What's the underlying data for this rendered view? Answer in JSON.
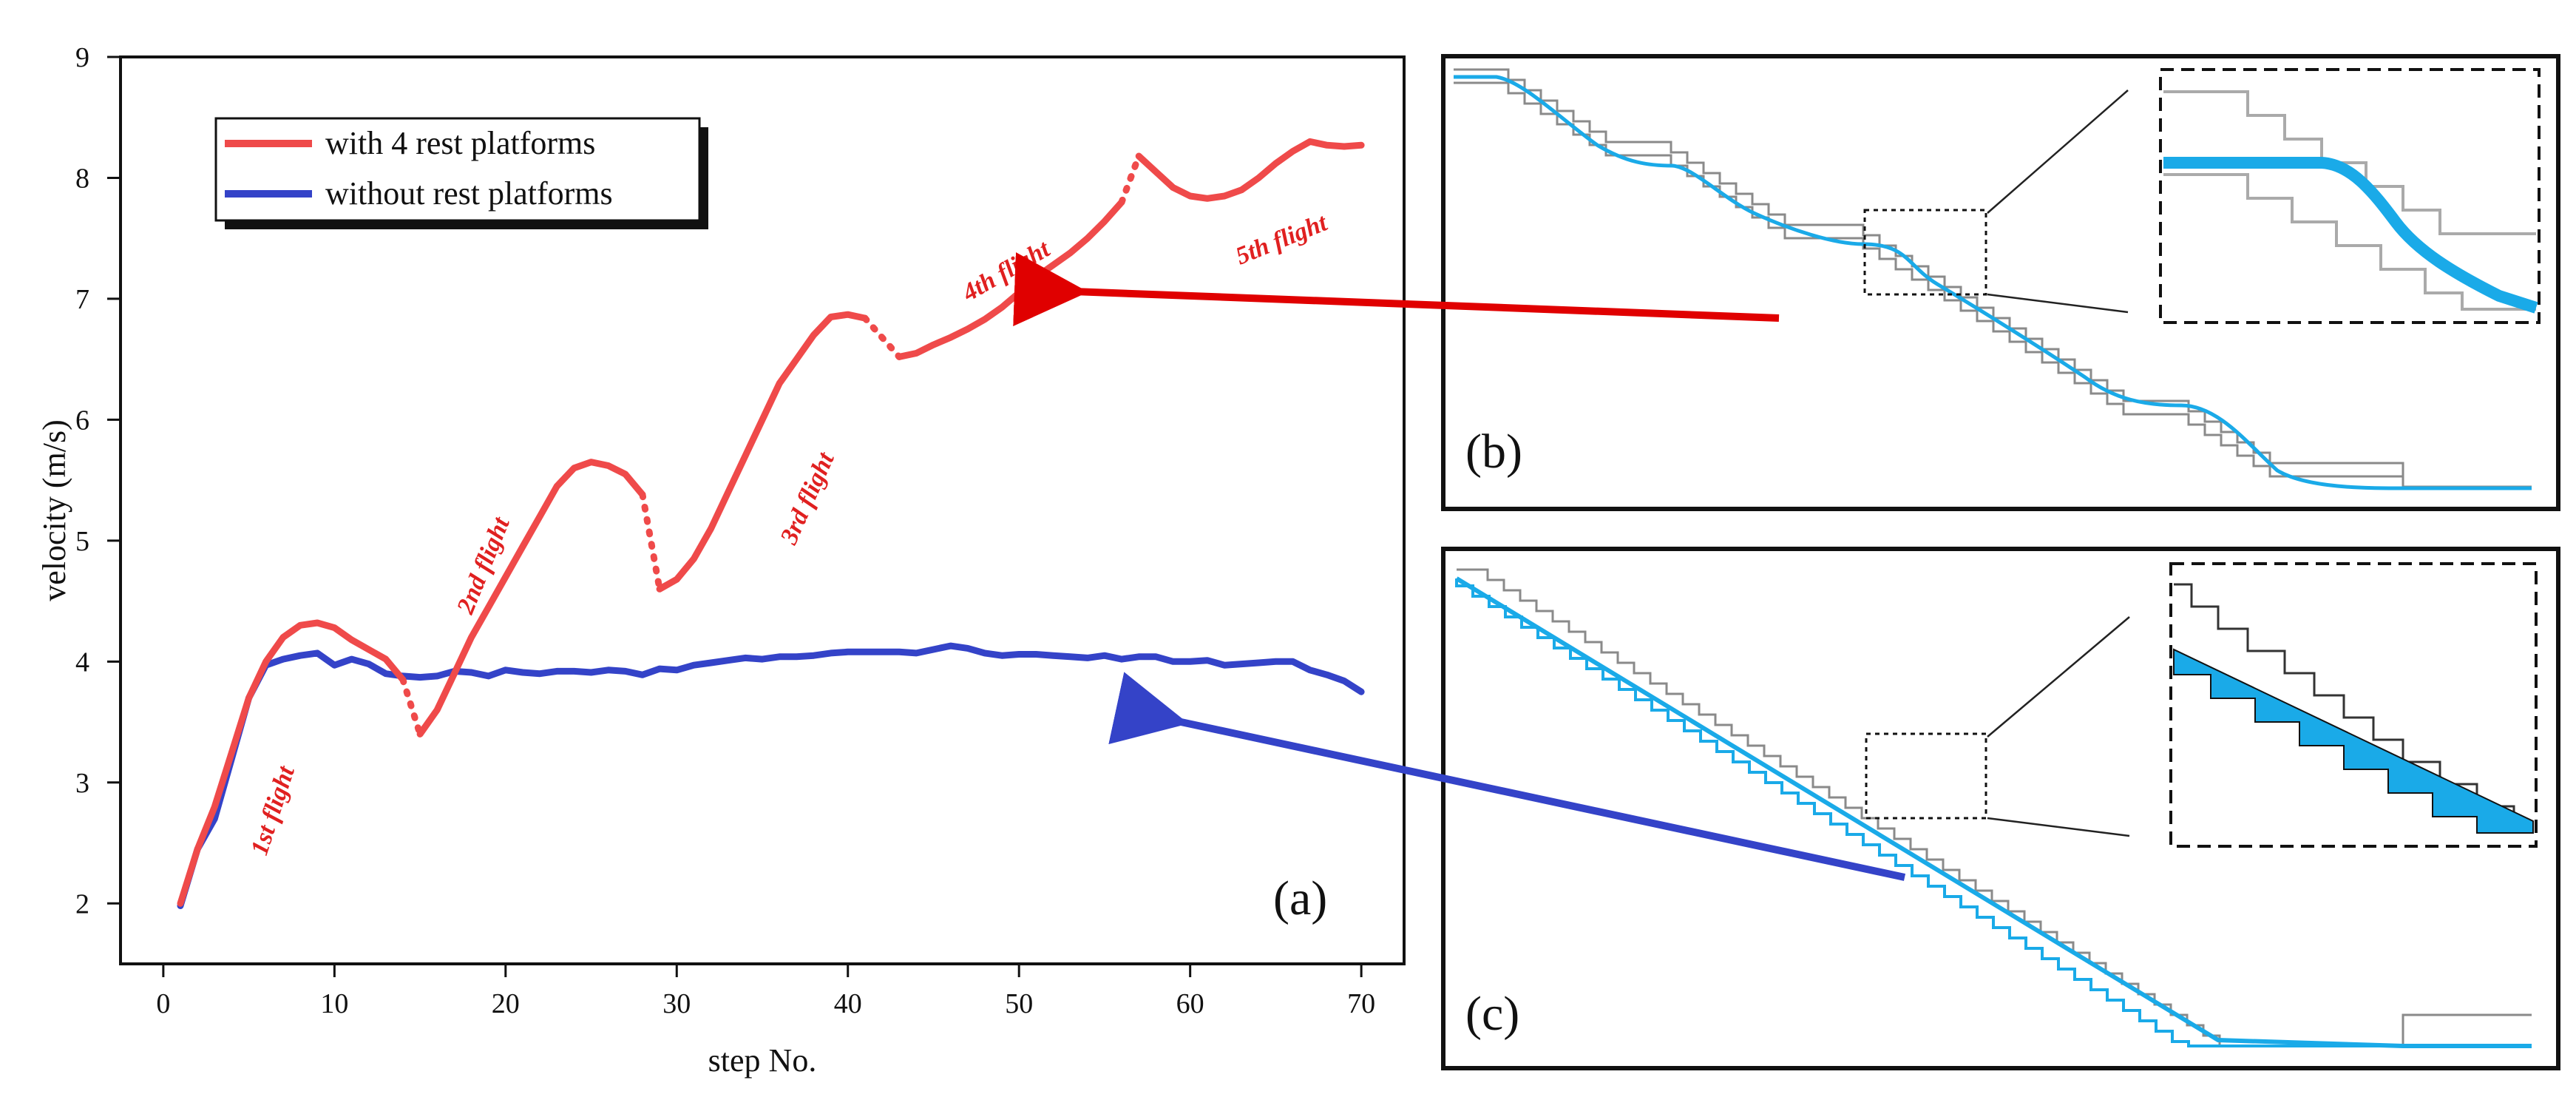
{
  "chart_data": {
    "type": "line",
    "panel_label": "(a)",
    "xlabel": "step No.",
    "ylabel": "velocity (m/s)",
    "xlim": [
      -2.5,
      72.5
    ],
    "ylim": [
      1.5,
      9
    ],
    "x_ticks": [
      0,
      10,
      20,
      30,
      40,
      50,
      60,
      70
    ],
    "y_ticks": [
      2,
      3,
      4,
      5,
      6,
      7,
      8,
      9
    ],
    "legend": [
      {
        "name": "with 4 rest platforms",
        "color": "#ef4a4a"
      },
      {
        "name": "without rest platforms",
        "color": "#3443c8"
      }
    ],
    "series": [
      {
        "name": "with 4 rest platforms",
        "color": "#ef4a4a",
        "segments": [
          [
            [
              1,
              2.0
            ],
            [
              2,
              2.45
            ],
            [
              3,
              2.8
            ],
            [
              4,
              3.25
            ],
            [
              5,
              3.7
            ],
            [
              6,
              4.0
            ],
            [
              7,
              4.2
            ],
            [
              8,
              4.3
            ],
            [
              9,
              4.32
            ],
            [
              10,
              4.28
            ],
            [
              11,
              4.18
            ],
            [
              12,
              4.1
            ],
            [
              13,
              4.02
            ],
            [
              14,
              3.85
            ]
          ],
          [
            [
              15,
              3.4
            ],
            [
              16,
              3.6
            ],
            [
              17,
              3.9
            ],
            [
              18,
              4.2
            ],
            [
              19,
              4.45
            ],
            [
              20,
              4.7
            ],
            [
              21,
              4.95
            ],
            [
              22,
              5.2
            ],
            [
              23,
              5.45
            ],
            [
              24,
              5.6
            ],
            [
              25,
              5.65
            ],
            [
              26,
              5.62
            ],
            [
              27,
              5.55
            ],
            [
              28,
              5.38
            ]
          ],
          [
            [
              29,
              4.6
            ],
            [
              30,
              4.68
            ],
            [
              31,
              4.85
            ],
            [
              32,
              5.1
            ],
            [
              33,
              5.4
            ],
            [
              34,
              5.7
            ],
            [
              35,
              6.0
            ],
            [
              36,
              6.3
            ],
            [
              37,
              6.5
            ],
            [
              38,
              6.7
            ],
            [
              39,
              6.85
            ],
            [
              40,
              6.87
            ],
            [
              41,
              6.84
            ]
          ],
          [
            [
              43,
              6.52
            ],
            [
              44,
              6.55
            ],
            [
              45,
              6.62
            ],
            [
              46,
              6.68
            ],
            [
              47,
              6.75
            ],
            [
              48,
              6.83
            ],
            [
              49,
              6.93
            ],
            [
              50,
              7.05
            ],
            [
              51,
              7.18
            ],
            [
              52,
              7.28
            ],
            [
              53,
              7.38
            ],
            [
              54,
              7.5
            ],
            [
              55,
              7.64
            ],
            [
              56,
              7.8
            ]
          ],
          [
            [
              57,
              8.18
            ],
            [
              58,
              8.05
            ],
            [
              59,
              7.92
            ],
            [
              60,
              7.85
            ],
            [
              61,
              7.83
            ],
            [
              62,
              7.85
            ],
            [
              63,
              7.9
            ],
            [
              64,
              8.0
            ],
            [
              65,
              8.12
            ],
            [
              66,
              8.22
            ],
            [
              67,
              8.3
            ],
            [
              68,
              8.27
            ],
            [
              69,
              8.26
            ],
            [
              70,
              8.27
            ]
          ]
        ],
        "gaps": [
          [
            [
              14,
              3.85
            ],
            [
              15,
              3.4
            ]
          ],
          [
            [
              28,
              5.38
            ],
            [
              29,
              4.6
            ]
          ],
          [
            [
              41,
              6.84
            ],
            [
              43,
              6.52
            ]
          ],
          [
            [
              56,
              7.8
            ],
            [
              57,
              8.18
            ]
          ]
        ]
      },
      {
        "name": "without rest platforms",
        "color": "#3443c8",
        "points": [
          [
            1,
            1.98
          ],
          [
            2,
            2.45
          ],
          [
            3,
            2.7
          ],
          [
            4,
            3.2
          ],
          [
            5,
            3.7
          ],
          [
            6,
            3.97
          ],
          [
            7,
            4.02
          ],
          [
            8,
            4.05
          ],
          [
            9,
            4.07
          ],
          [
            10,
            3.97
          ],
          [
            11,
            4.02
          ],
          [
            12,
            3.98
          ],
          [
            13,
            3.9
          ],
          [
            14,
            3.88
          ],
          [
            15,
            3.87
          ],
          [
            16,
            3.88
          ],
          [
            17,
            3.92
          ],
          [
            18,
            3.91
          ],
          [
            19,
            3.88
          ],
          [
            20,
            3.93
          ],
          [
            21,
            3.91
          ],
          [
            22,
            3.9
          ],
          [
            23,
            3.92
          ],
          [
            24,
            3.92
          ],
          [
            25,
            3.91
          ],
          [
            26,
            3.93
          ],
          [
            27,
            3.92
          ],
          [
            28,
            3.89
          ],
          [
            29,
            3.94
          ],
          [
            30,
            3.93
          ],
          [
            31,
            3.97
          ],
          [
            32,
            3.99
          ],
          [
            33,
            4.01
          ],
          [
            34,
            4.03
          ],
          [
            35,
            4.02
          ],
          [
            36,
            4.04
          ],
          [
            37,
            4.04
          ],
          [
            38,
            4.05
          ],
          [
            39,
            4.07
          ],
          [
            40,
            4.08
          ],
          [
            41,
            4.08
          ],
          [
            42,
            4.08
          ],
          [
            43,
            4.08
          ],
          [
            44,
            4.07
          ],
          [
            45,
            4.1
          ],
          [
            46,
            4.13
          ],
          [
            47,
            4.11
          ],
          [
            48,
            4.07
          ],
          [
            49,
            4.05
          ],
          [
            50,
            4.06
          ],
          [
            51,
            4.06
          ],
          [
            52,
            4.05
          ],
          [
            53,
            4.04
          ],
          [
            54,
            4.03
          ],
          [
            55,
            4.05
          ],
          [
            56,
            4.02
          ],
          [
            57,
            4.04
          ],
          [
            58,
            4.04
          ],
          [
            59,
            4.0
          ],
          [
            60,
            4.0
          ],
          [
            61,
            4.01
          ],
          [
            62,
            3.97
          ],
          [
            63,
            3.98
          ],
          [
            64,
            3.99
          ],
          [
            65,
            4.0
          ],
          [
            66,
            4.0
          ],
          [
            67,
            3.93
          ],
          [
            68,
            3.89
          ],
          [
            69,
            3.84
          ],
          [
            70,
            3.75
          ]
        ]
      }
    ],
    "annotations": [
      {
        "text": "1st flight",
        "color": "#e02020"
      },
      {
        "text": "2nd flight",
        "color": "#e02020"
      },
      {
        "text": "3rd flight",
        "color": "#e02020"
      },
      {
        "text": "4th flight",
        "color": "#e02020"
      },
      {
        "text": "5th flight",
        "color": "#e02020"
      }
    ],
    "inset_panels": [
      {
        "label": "(b)",
        "description_color": "#1aaae8"
      },
      {
        "label": "(c)",
        "description_color": "#1aaae8"
      }
    ]
  }
}
